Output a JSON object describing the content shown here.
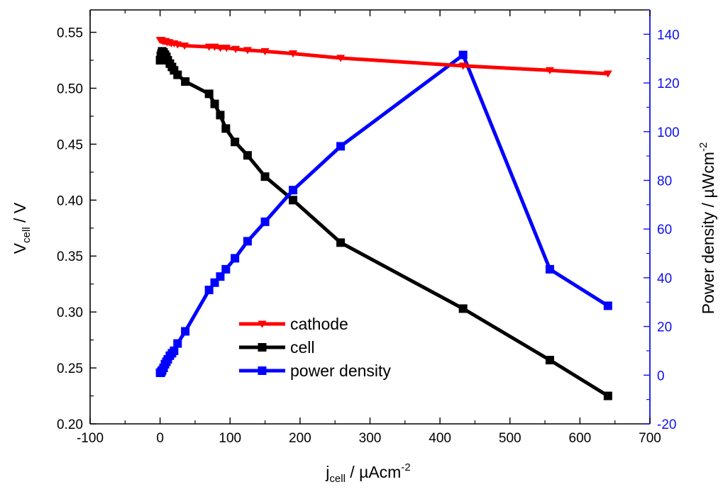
{
  "chart_data": {
    "type": "line",
    "title": "",
    "x_axis": {
      "label_main": "j",
      "label_sub": "cell",
      "label_rest": " / µAcm",
      "label_sup": "-2",
      "range": [
        -100,
        700
      ],
      "ticks": [
        -100,
        0,
        100,
        200,
        300,
        400,
        500,
        600,
        700
      ]
    },
    "y_axis_left": {
      "label_main": "V",
      "label_sub": "cell",
      "label_rest": " / V",
      "range": [
        0.2,
        0.57
      ],
      "ticks": [
        0.2,
        0.25,
        0.3,
        0.35,
        0.4,
        0.45,
        0.5,
        0.55
      ]
    },
    "y_axis_right": {
      "label_main": "Power density / µWcm",
      "label_sup": "-2",
      "range": [
        -20,
        150
      ],
      "ticks": [
        -20,
        0,
        20,
        40,
        60,
        80,
        100,
        120,
        140
      ],
      "color": "#1010ee"
    },
    "legend": {
      "placement": "center-bottom"
    },
    "series": [
      {
        "name": "cathode",
        "axis": "left",
        "color": "#ff0000",
        "marker": "triangle-down",
        "points": [
          [
            0,
            0.543
          ],
          [
            2,
            0.543
          ],
          [
            4,
            0.542
          ],
          [
            6,
            0.542
          ],
          [
            8,
            0.542
          ],
          [
            10,
            0.541
          ],
          [
            13,
            0.541
          ],
          [
            16,
            0.54
          ],
          [
            20,
            0.54
          ],
          [
            25,
            0.539
          ],
          [
            35,
            0.538
          ],
          [
            70,
            0.537
          ],
          [
            78,
            0.537
          ],
          [
            86,
            0.536
          ],
          [
            95,
            0.536
          ],
          [
            108,
            0.535
          ],
          [
            125,
            0.534
          ],
          [
            150,
            0.533
          ],
          [
            190,
            0.531
          ],
          [
            258,
            0.527
          ],
          [
            433,
            0.52
          ],
          [
            557,
            0.516
          ],
          [
            640,
            0.513
          ]
        ]
      },
      {
        "name": "cell",
        "axis": "left",
        "color": "#000000",
        "marker": "square",
        "points": [
          [
            0,
            0.525
          ],
          [
            1,
            0.529
          ],
          [
            2,
            0.531
          ],
          [
            3,
            0.533
          ],
          [
            5,
            0.532
          ],
          [
            7,
            0.53
          ],
          [
            9,
            0.528
          ],
          [
            11,
            0.525
          ],
          [
            14,
            0.522
          ],
          [
            17,
            0.519
          ],
          [
            20,
            0.516
          ],
          [
            25,
            0.512
          ],
          [
            36,
            0.506
          ],
          [
            70,
            0.495
          ],
          [
            78,
            0.486
          ],
          [
            86,
            0.476
          ],
          [
            94,
            0.464
          ],
          [
            107,
            0.452
          ],
          [
            125,
            0.44
          ],
          [
            150,
            0.421
          ],
          [
            190,
            0.4
          ],
          [
            258,
            0.362
          ],
          [
            433,
            0.303
          ],
          [
            557,
            0.257
          ],
          [
            640,
            0.225
          ]
        ]
      },
      {
        "name": "power density",
        "axis": "right",
        "color": "#0000ff",
        "marker": "square",
        "points": [
          [
            0,
            1
          ],
          [
            1,
            1
          ],
          [
            2,
            1.5
          ],
          [
            3,
            2
          ],
          [
            5,
            3
          ],
          [
            7,
            4.5
          ],
          [
            9,
            5.5
          ],
          [
            11,
            6.5
          ],
          [
            14,
            8
          ],
          [
            17,
            9
          ],
          [
            20,
            10
          ],
          [
            25,
            13
          ],
          [
            36,
            18
          ],
          [
            70,
            35
          ],
          [
            78,
            38
          ],
          [
            86,
            40.5
          ],
          [
            94,
            43.5
          ],
          [
            107,
            48
          ],
          [
            125,
            55
          ],
          [
            150,
            63
          ],
          [
            190,
            76
          ],
          [
            258,
            94
          ],
          [
            433,
            131.5
          ],
          [
            557,
            43.5
          ],
          [
            640,
            28.5
          ]
        ]
      }
    ]
  }
}
